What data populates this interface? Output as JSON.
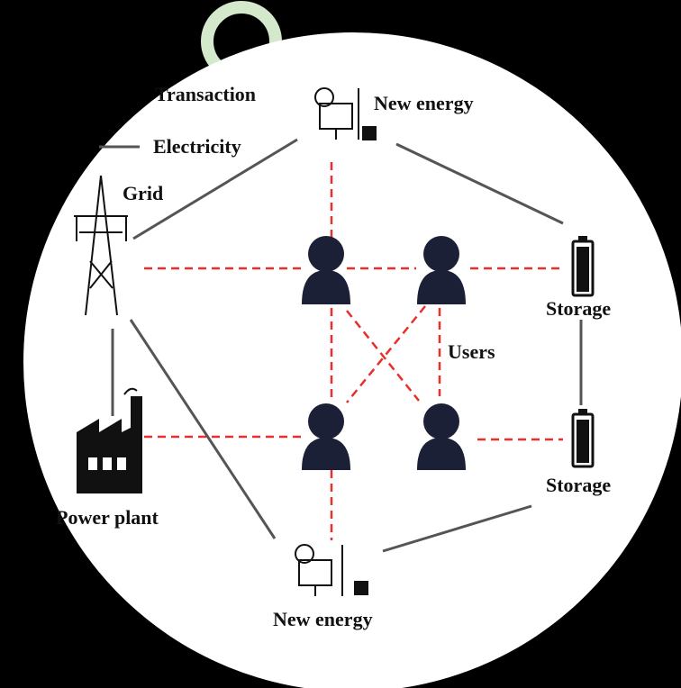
{
  "legend": {
    "transaction": "Transaction",
    "electricity": "Electricity"
  },
  "nodes": [
    {
      "label": "New energy"
    },
    {
      "label": "Grid"
    },
    {
      "label": "Storage"
    },
    {
      "label": "Users"
    },
    {
      "label": "Storage"
    },
    {
      "label": "Power plant"
    },
    {
      "label": "New energy"
    }
  ]
}
